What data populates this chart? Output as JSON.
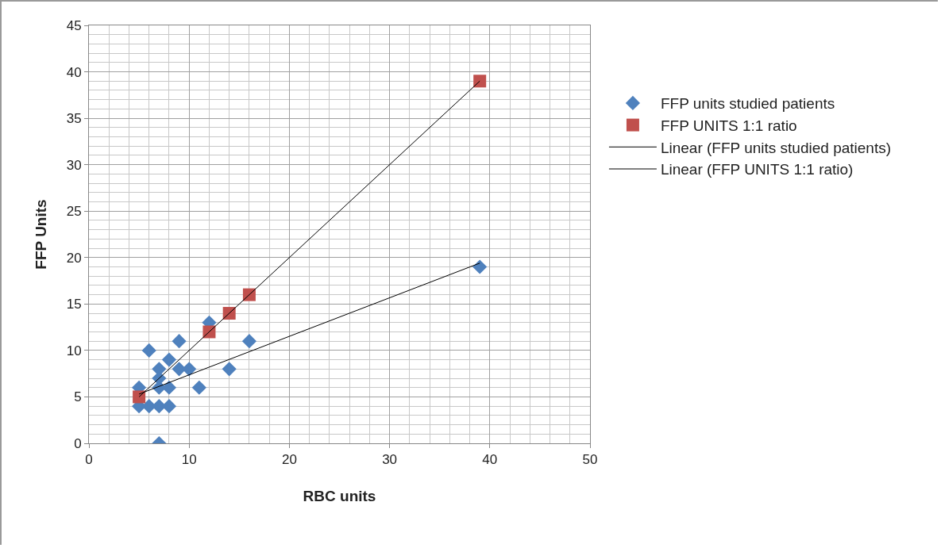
{
  "chart_data": {
    "type": "scatter",
    "xlabel": "RBC units",
    "ylabel": "FFP Units",
    "xlim": [
      0,
      50
    ],
    "xticks": [
      0,
      10,
      20,
      30,
      40,
      50
    ],
    "ylim": [
      0,
      45
    ],
    "yticks": [
      0,
      5,
      10,
      15,
      20,
      25,
      30,
      35,
      40,
      45
    ],
    "grid": true,
    "legend": "right",
    "series": [
      {
        "name": "FFP units studied patients",
        "color": "#4f81bd",
        "marker": "diamond",
        "x": [
          5,
          5,
          6,
          6,
          7,
          7,
          7,
          7,
          7,
          8,
          8,
          8,
          9,
          9,
          10,
          11,
          12,
          14,
          16,
          39
        ],
        "values": [
          4,
          6,
          4,
          10,
          0,
          4,
          6,
          7,
          8,
          4,
          6,
          9,
          8,
          11,
          8,
          6,
          13,
          8,
          11,
          19
        ]
      },
      {
        "name": "FFP UNITS 1:1 ratio",
        "color": "#c0504d",
        "marker": "square",
        "x": [
          5,
          12,
          14,
          16,
          39
        ],
        "values": [
          5,
          12,
          14,
          16,
          39
        ]
      },
      {
        "name": "Linear (FFP units studied patients)",
        "type": "line",
        "color": "#000000",
        "marker": "none",
        "x": [
          5,
          39
        ],
        "values": [
          5.3,
          19.4
        ]
      },
      {
        "name": "Linear (FFP UNITS 1:1 ratio)",
        "type": "line",
        "color": "#000000",
        "marker": "none",
        "x": [
          5,
          39
        ],
        "values": [
          5,
          39
        ]
      }
    ]
  }
}
